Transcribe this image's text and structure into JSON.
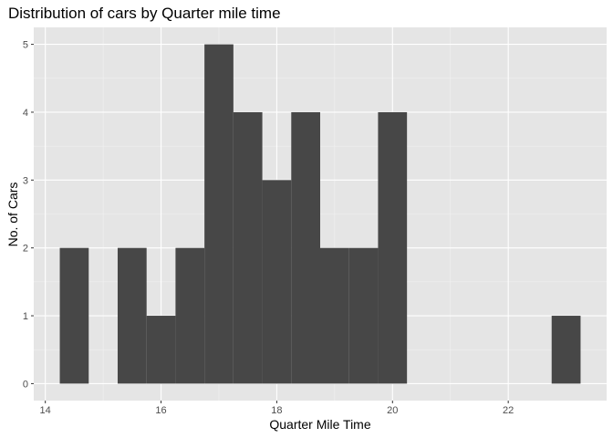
{
  "chart_data": {
    "type": "bar",
    "title": "Distribution of cars by Quarter mile time",
    "xlabel": "Quarter Mile Time",
    "ylabel": "No. of Cars",
    "bin_width": 0.5,
    "bins": [
      {
        "start": 14.25,
        "end": 14.75,
        "count": 2
      },
      {
        "start": 14.75,
        "end": 15.25,
        "count": 0
      },
      {
        "start": 15.25,
        "end": 15.75,
        "count": 2
      },
      {
        "start": 15.75,
        "end": 16.25,
        "count": 1
      },
      {
        "start": 16.25,
        "end": 16.75,
        "count": 2
      },
      {
        "start": 16.75,
        "end": 17.25,
        "count": 5
      },
      {
        "start": 17.25,
        "end": 17.75,
        "count": 4
      },
      {
        "start": 17.75,
        "end": 18.25,
        "count": 3
      },
      {
        "start": 18.25,
        "end": 18.75,
        "count": 4
      },
      {
        "start": 18.75,
        "end": 19.25,
        "count": 2
      },
      {
        "start": 19.25,
        "end": 19.75,
        "count": 2
      },
      {
        "start": 19.75,
        "end": 20.25,
        "count": 4
      },
      {
        "start": 20.25,
        "end": 20.75,
        "count": 0
      },
      {
        "start": 20.75,
        "end": 21.25,
        "count": 0
      },
      {
        "start": 21.25,
        "end": 21.75,
        "count": 0
      },
      {
        "start": 21.75,
        "end": 22.25,
        "count": 0
      },
      {
        "start": 22.25,
        "end": 22.75,
        "count": 0
      },
      {
        "start": 22.75,
        "end": 23.25,
        "count": 1
      }
    ],
    "xlim": [
      13.8,
      23.7
    ],
    "ylim": [
      -0.25,
      5.25
    ],
    "x_ticks": [
      14,
      16,
      18,
      20,
      22
    ],
    "y_ticks": [
      0,
      1,
      2,
      3,
      4,
      5
    ],
    "grid": true,
    "colors": {
      "bar": "#474747",
      "panel_background": "#e5e5e5",
      "grid": "#ffffff"
    }
  }
}
